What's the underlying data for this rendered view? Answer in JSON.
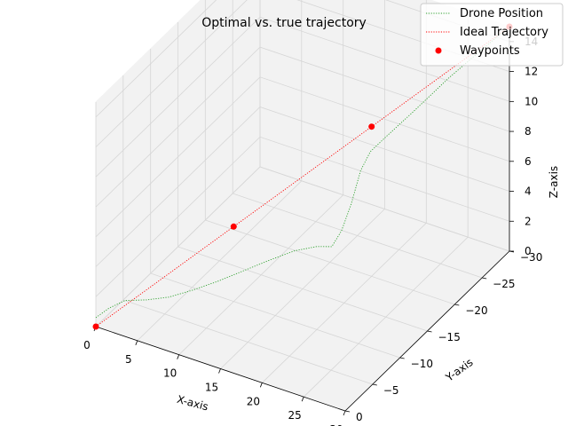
{
  "chart_data": {
    "type": "line3d",
    "title": "Optimal vs. true trajectory",
    "xlabel": "X-axis",
    "ylabel": "Y-axis",
    "zlabel": "Z-axis",
    "xlim": [
      0,
      30
    ],
    "ylim": [
      0,
      -30
    ],
    "zlim": [
      0,
      15
    ],
    "xticks": [
      "0",
      "5",
      "10",
      "15",
      "20",
      "25",
      "30"
    ],
    "yticks": [
      "0",
      "−5",
      "−10",
      "−15",
      "−20",
      "−25",
      "−30"
    ],
    "zticks": [
      "0",
      "2",
      "4",
      "6",
      "8",
      "10",
      "12",
      "14"
    ],
    "grid": true,
    "legend_position": "top-right",
    "series": [
      {
        "name": "Drone Position",
        "kind": "line",
        "style": "dotted",
        "color": "#2ca02c",
        "points": [
          [
            0,
            0,
            0.6
          ],
          [
            1,
            -0.9,
            1.1
          ],
          [
            2,
            -2.3,
            1.3
          ],
          [
            4,
            -3.2,
            1.4
          ],
          [
            6,
            -4.2,
            1.6
          ],
          [
            8,
            -5.4,
            2.0
          ],
          [
            10,
            -7.0,
            2.4
          ],
          [
            12,
            -8.6,
            2.9
          ],
          [
            14,
            -10.2,
            3.4
          ],
          [
            16,
            -12.0,
            3.8
          ],
          [
            18,
            -13.0,
            4.1
          ],
          [
            19.5,
            -13.5,
            4.2
          ],
          [
            20,
            -14.5,
            5.0
          ],
          [
            20.5,
            -15.5,
            6.5
          ],
          [
            21,
            -16.5,
            8.5
          ],
          [
            21.5,
            -17.5,
            9.5
          ],
          [
            22.5,
            -19,
            10.2
          ],
          [
            24,
            -21.5,
            11.2
          ],
          [
            26,
            -25,
            12.6
          ],
          [
            28,
            -28,
            13.8
          ],
          [
            30,
            -30,
            15
          ]
        ]
      },
      {
        "name": "Ideal Trajectory",
        "kind": "line",
        "style": "dotted",
        "color": "#ff0000",
        "points": [
          [
            0,
            0,
            0
          ],
          [
            10,
            -10,
            5
          ],
          [
            20,
            -20,
            10
          ],
          [
            30,
            -30,
            15
          ]
        ]
      },
      {
        "name": "Waypoints",
        "kind": "scatter",
        "color": "#ff0000",
        "points": [
          [
            0,
            0,
            0
          ],
          [
            10,
            -10,
            5
          ],
          [
            20,
            -20,
            10
          ],
          [
            30,
            -30,
            15
          ]
        ]
      }
    ]
  }
}
